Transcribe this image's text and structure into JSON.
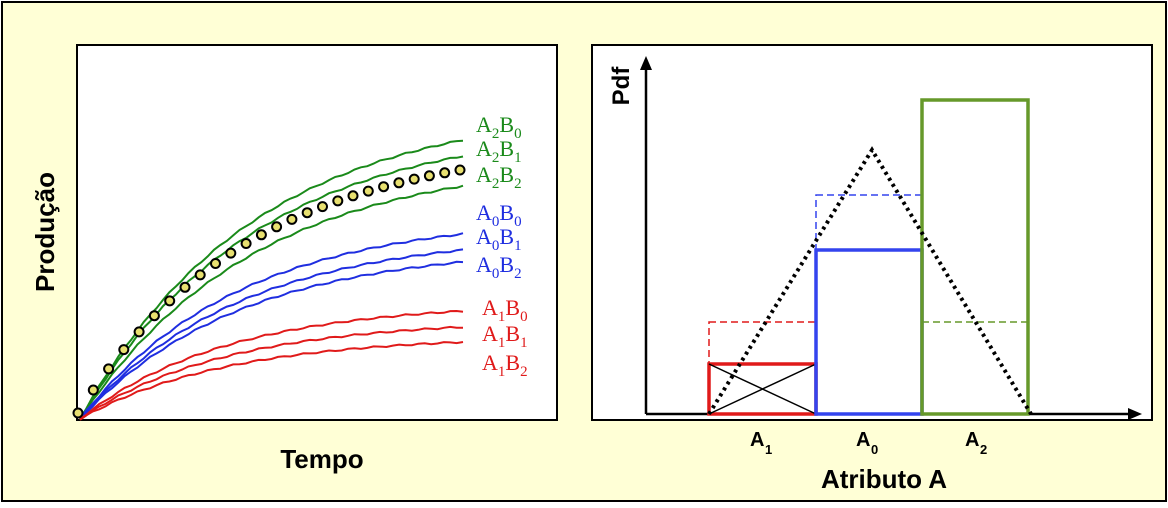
{
  "left_panel": {
    "ylabel": "Produção",
    "xlabel": "Tempo",
    "series": [
      {
        "label": [
          "A",
          "2",
          "B",
          "0"
        ],
        "color": "#1a8a1a"
      },
      {
        "label": [
          "A",
          "2",
          "B",
          "1"
        ],
        "color": "#1a8a1a"
      },
      {
        "label": [
          "A",
          "2",
          "B",
          "2"
        ],
        "color": "#1a8a1a"
      },
      {
        "label": [
          "A",
          "0",
          "B",
          "0"
        ],
        "color": "#1f2ee0"
      },
      {
        "label": [
          "A",
          "0",
          "B",
          "1"
        ],
        "color": "#1f2ee0"
      },
      {
        "label": [
          "A",
          "0",
          "B",
          "2"
        ],
        "color": "#1f2ee0"
      },
      {
        "label": [
          "A",
          "1",
          "B",
          "0"
        ],
        "color": "#e01a1a"
      },
      {
        "label": [
          "A",
          "1",
          "B",
          "1"
        ],
        "color": "#e01a1a"
      },
      {
        "label": [
          "A",
          "1",
          "B",
          "2"
        ],
        "color": "#e01a1a"
      }
    ],
    "observed_marker_color": "#e8e070"
  },
  "right_panel": {
    "ylabel": "Pdf",
    "xlabel": "Atributo A",
    "ticks": [
      {
        "main": "A",
        "sub": "1"
      },
      {
        "main": "A",
        "sub": "0"
      },
      {
        "main": "A",
        "sub": "2"
      }
    ],
    "bar_colors": [
      "#e01a1a",
      "#3344ee",
      "#66992a"
    ]
  },
  "colors": {
    "frame_background": "#ffffd6",
    "green": "#1a8a1a",
    "blue": "#1f2ee0",
    "red": "#e01a1a"
  }
}
